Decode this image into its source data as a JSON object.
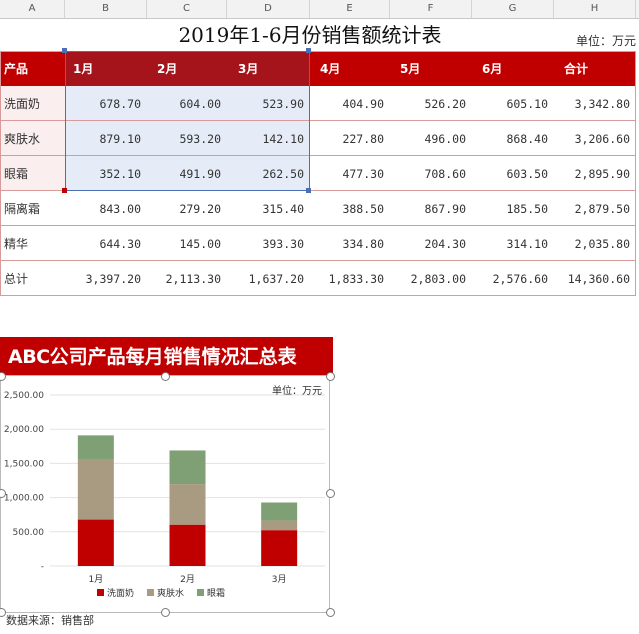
{
  "columns": [
    "A",
    "B",
    "C",
    "D",
    "E",
    "F",
    "G",
    "H"
  ],
  "sheet": {
    "title": "2019年1-6月份销售额统计表",
    "unit": "单位：万元",
    "headers": [
      "产品",
      "1月",
      "2月",
      "3月",
      "4月",
      "5月",
      "6月",
      "合计"
    ],
    "rows": [
      {
        "name": "洗面奶",
        "values": [
          "678.70",
          "604.00",
          "523.90",
          "404.90",
          "526.20",
          "605.10",
          "3,342.80"
        ]
      },
      {
        "name": "爽肤水",
        "values": [
          "879.10",
          "593.20",
          "142.10",
          "227.80",
          "496.00",
          "868.40",
          "3,206.60"
        ]
      },
      {
        "name": "眼霜",
        "values": [
          "352.10",
          "491.90",
          "262.50",
          "477.30",
          "708.60",
          "603.50",
          "2,895.90"
        ]
      },
      {
        "name": "隔离霜",
        "values": [
          "843.00",
          "279.20",
          "315.40",
          "388.50",
          "867.90",
          "185.50",
          "2,879.50"
        ]
      },
      {
        "name": "精华",
        "values": [
          "644.30",
          "145.00",
          "393.30",
          "334.80",
          "204.30",
          "314.10",
          "2,035.80"
        ]
      },
      {
        "name": "总计",
        "values": [
          "3,397.20",
          "2,113.30",
          "1,637.20",
          "1,833.30",
          "2,803.00",
          "2,576.60",
          "14,360.60"
        ]
      }
    ]
  },
  "chart": {
    "banner_prefix": "ABC",
    "banner_text": "公司产品每月销售情况汇总表",
    "unit": "单位：万元",
    "source": "数据来源：销售部"
  },
  "chart_data": {
    "type": "bar",
    "stacked": true,
    "categories": [
      "1月",
      "2月",
      "3月"
    ],
    "series": [
      {
        "name": "洗面奶",
        "values": [
          678.7,
          604.0,
          523.9
        ],
        "color": "#c00000"
      },
      {
        "name": "爽肤水",
        "values": [
          879.1,
          593.2,
          142.1
        ],
        "color": "#a99a82"
      },
      {
        "name": "眼霜",
        "values": [
          352.1,
          491.9,
          262.5
        ],
        "color": "#7f9f74"
      }
    ],
    "y_ticks": [
      "-",
      "500.00",
      "1,000.00",
      "1,500.00",
      "2,000.00",
      "2,500.00"
    ],
    "ylim": [
      0,
      2500
    ],
    "legend": "bottom",
    "grid": true
  }
}
